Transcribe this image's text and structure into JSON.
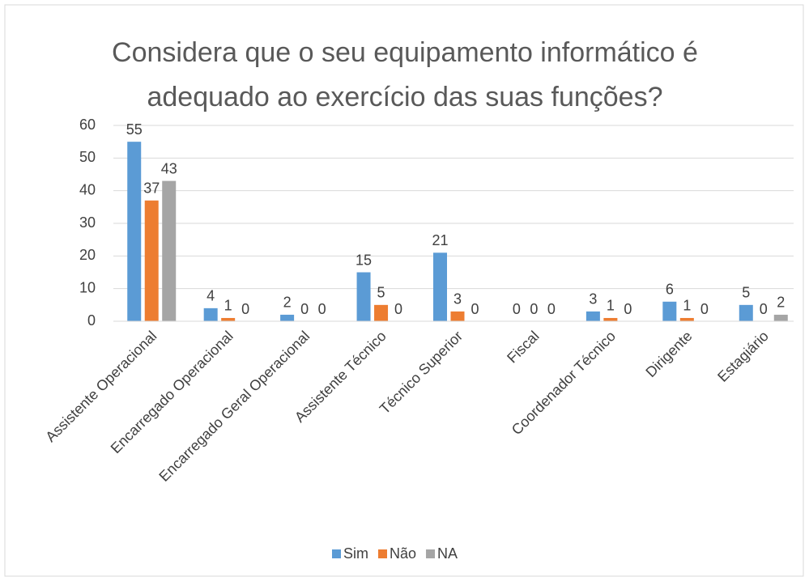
{
  "chart_data": {
    "type": "bar",
    "title": "Considera que o seu equipamento informático é adequado ao exercício das suas funções?",
    "categories": [
      "Assistente Operacional",
      "Encarregado Operacional",
      "Encarregado Geral Operacional",
      "Assistente Técnico",
      "Técnico Superior",
      "Fiscal",
      "Coordenador Técnico",
      "Dirigente",
      "Estagiário"
    ],
    "series": [
      {
        "name": "Sim",
        "color": "#5b9bd5",
        "values": [
          55,
          4,
          2,
          15,
          21,
          0,
          3,
          6,
          5
        ]
      },
      {
        "name": "Não",
        "color": "#ed7d31",
        "values": [
          37,
          1,
          0,
          5,
          3,
          0,
          1,
          1,
          0
        ]
      },
      {
        "name": "NA",
        "color": "#a5a5a5",
        "values": [
          43,
          0,
          0,
          0,
          0,
          0,
          0,
          0,
          2
        ]
      }
    ],
    "ylim": [
      0,
      60
    ],
    "yticks": [
      0,
      10,
      20,
      30,
      40,
      50,
      60
    ],
    "grid": true,
    "legend": "bottom"
  }
}
